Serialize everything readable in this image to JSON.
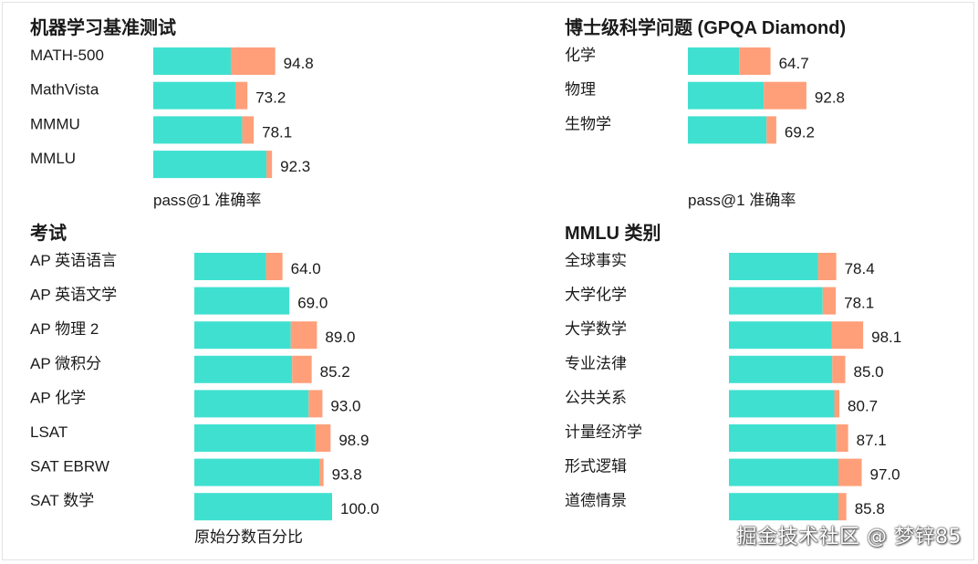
{
  "colors": {
    "base": "#40e0d0",
    "gain": "#ff9f7a",
    "text": "#1a1a1a"
  },
  "watermark": "掘金技术社区 @ 梦锌85",
  "chart_data": [
    {
      "type": "bar",
      "orientation": "horizontal",
      "stacked": true,
      "title": "机器学习基准测试",
      "xlabel": "pass@1 准确率",
      "categories": [
        "MATH-500",
        "MathVista",
        "MMMU",
        "MMLU"
      ],
      "series": [
        {
          "values": [
            60.3,
            63.8,
            69.1,
            88.0
          ]
        },
        {
          "values": [
            34.5,
            9.4,
            9.0,
            4.3
          ]
        }
      ],
      "totals": [
        "94.8",
        "73.2",
        "78.1",
        "92.3"
      ],
      "xlim": [
        0,
        100
      ]
    },
    {
      "type": "bar",
      "orientation": "horizontal",
      "stacked": true,
      "title": "博士级科学问题 (GPQA Diamond)",
      "xlabel": "pass@1 准确率",
      "categories": [
        "化学",
        "物理",
        "生物学"
      ],
      "series": [
        {
          "values": [
            40.2,
            59.5,
            61.6
          ]
        },
        {
          "values": [
            24.5,
            33.3,
            7.6
          ]
        }
      ],
      "totals": [
        "64.7",
        "92.8",
        "69.2"
      ],
      "xlim": [
        0,
        100
      ]
    },
    {
      "type": "bar",
      "orientation": "horizontal",
      "stacked": true,
      "title": "考试",
      "xlabel": "原始分数百分比",
      "categories": [
        "AP 英语语言",
        "AP 英语文学",
        "AP 物理 2",
        "AP 微积分",
        "AP 化学",
        "LSAT",
        "SAT EBRW",
        "SAT 数学"
      ],
      "series": [
        {
          "values": [
            52.0,
            69.0,
            70.0,
            71.0,
            83.0,
            88.0,
            91.0,
            100.0
          ]
        },
        {
          "values": [
            12.0,
            0.0,
            19.0,
            14.2,
            10.0,
            10.9,
            2.8,
            0.0
          ]
        }
      ],
      "totals": [
        "64.0",
        "69.0",
        "89.0",
        "85.2",
        "93.0",
        "98.9",
        "93.8",
        "100.0"
      ],
      "xlim": [
        0,
        100
      ]
    },
    {
      "type": "bar",
      "orientation": "horizontal",
      "stacked": true,
      "title": "MMLU 类别",
      "xlabel": "",
      "categories": [
        "全球事实",
        "大学化学",
        "大学数学",
        "专业法律",
        "公共关系",
        "计量经济学",
        "形式逻辑",
        "道德情景"
      ],
      "series": [
        {
          "values": [
            65.0,
            68.5,
            75.0,
            75.5,
            77.0,
            78.5,
            80.0,
            80.0
          ]
        },
        {
          "values": [
            13.4,
            9.6,
            23.1,
            9.5,
            3.7,
            8.6,
            17.0,
            5.8
          ]
        }
      ],
      "totals": [
        "78.4",
        "78.1",
        "98.1",
        "85.0",
        "80.7",
        "87.1",
        "97.0",
        "85.8"
      ],
      "xlim": [
        0,
        100
      ]
    }
  ]
}
